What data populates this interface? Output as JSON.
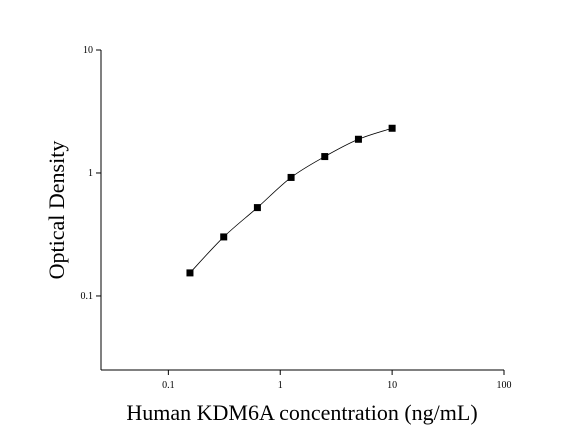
{
  "chart_data": {
    "type": "scatter",
    "x_label": "Human KDM6A concentration (ng/mL)",
    "y_label": "Optical Density",
    "x": [
      0.156,
      0.3125,
      0.625,
      1.25,
      2.5,
      5,
      10
    ],
    "values": [
      0.154,
      0.302,
      0.523,
      0.92,
      1.36,
      1.88,
      2.31
    ],
    "color": "#000000",
    "x_log": true,
    "y_log": true,
    "fit_line": true,
    "xlim": [
      0.025,
      100
    ],
    "ylim": [
      0.025,
      10
    ],
    "xticks": [
      0.1,
      1,
      10,
      100
    ],
    "yticks": [
      0.1,
      1,
      10
    ]
  }
}
